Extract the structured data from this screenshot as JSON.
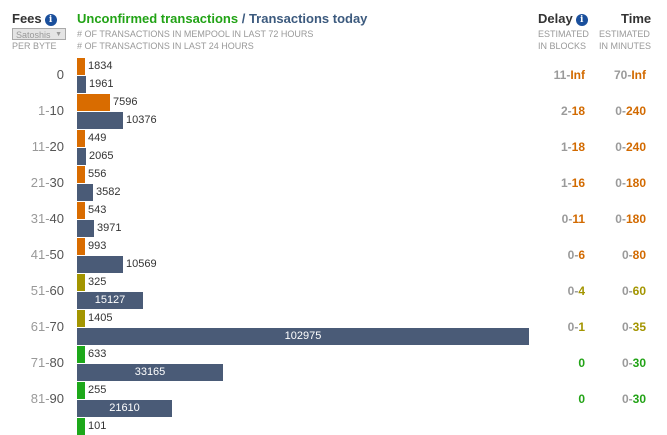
{
  "header": {
    "fees_label": "Fees",
    "unit_select": "Satoshis",
    "per_byte": "PER BYTE",
    "title_unconfirmed": "Unconfirmed transactions",
    "title_sep": " / ",
    "title_today": "Transactions today",
    "sub_mempool": "# OF TRANSACTIONS IN MEMPOOL IN LAST 72 HOURS",
    "sub_last24": "# OF TRANSACTIONS IN LAST 24 HOURS",
    "delay_label": "Delay",
    "delay_sub1": "ESTIMATED",
    "delay_sub2": "IN BLOCKS",
    "time_label": "Time",
    "time_sub1": "ESTIMATED",
    "time_sub2": "IN MINUTES"
  },
  "colors": {
    "orange": "#d96c00",
    "olive": "#a39500",
    "green": "#1da81a",
    "slate": "#4a5b77",
    "info": "#1a4f9c"
  },
  "scale_max": 102975,
  "rows": [
    {
      "lo": "",
      "hi": "0",
      "mempool": 1834,
      "today": 1961,
      "mcolor": "orange",
      "delay_lo": "11",
      "delay_hi": "Inf",
      "delay_color": "org",
      "time_lo": "70",
      "time_hi": "Inf",
      "time_color": "org"
    },
    {
      "lo": "1",
      "hi": "10",
      "mempool": 7596,
      "today": 10376,
      "mcolor": "orange",
      "delay_lo": "2",
      "delay_hi": "18",
      "delay_color": "org",
      "time_lo": "0",
      "time_hi": "240",
      "time_color": "org"
    },
    {
      "lo": "11",
      "hi": "20",
      "mempool": 449,
      "today": 2065,
      "mcolor": "orange",
      "delay_lo": "1",
      "delay_hi": "18",
      "delay_color": "org",
      "time_lo": "0",
      "time_hi": "240",
      "time_color": "org"
    },
    {
      "lo": "21",
      "hi": "30",
      "mempool": 556,
      "today": 3582,
      "mcolor": "orange",
      "delay_lo": "1",
      "delay_hi": "16",
      "delay_color": "org",
      "time_lo": "0",
      "time_hi": "180",
      "time_color": "org"
    },
    {
      "lo": "31",
      "hi": "40",
      "mempool": 543,
      "today": 3971,
      "mcolor": "orange",
      "delay_lo": "0",
      "delay_hi": "11",
      "delay_color": "org",
      "time_lo": "0",
      "time_hi": "180",
      "time_color": "org"
    },
    {
      "lo": "41",
      "hi": "50",
      "mempool": 993,
      "today": 10569,
      "mcolor": "orange",
      "delay_lo": "0",
      "delay_hi": "6",
      "delay_color": "org",
      "time_lo": "0",
      "time_hi": "80",
      "time_color": "org"
    },
    {
      "lo": "51",
      "hi": "60",
      "mempool": 325,
      "today": 15127,
      "mcolor": "olive",
      "delay_lo": "0",
      "delay_hi": "4",
      "delay_color": "olv",
      "time_lo": "0",
      "time_hi": "60",
      "time_color": "olv"
    },
    {
      "lo": "61",
      "hi": "70",
      "mempool": 1405,
      "today": 102975,
      "mcolor": "olive",
      "delay_lo": "0",
      "delay_hi": "1",
      "delay_color": "olv",
      "time_lo": "0",
      "time_hi": "35",
      "time_color": "olv"
    },
    {
      "lo": "71",
      "hi": "80",
      "mempool": 633,
      "today": 33165,
      "mcolor": "green",
      "delay_lo": "",
      "delay_hi": "0",
      "delay_color": "grn",
      "time_lo": "0",
      "time_hi": "30",
      "time_color": "grn"
    },
    {
      "lo": "81",
      "hi": "90",
      "mempool": 255,
      "today": 21610,
      "mcolor": "green",
      "delay_lo": "",
      "delay_hi": "0",
      "delay_color": "grn",
      "time_lo": "0",
      "time_hi": "30",
      "time_color": "grn"
    },
    {
      "lo": "",
      "hi": "",
      "mempool": 101,
      "today": null,
      "mcolor": "green",
      "delay_lo": "",
      "delay_hi": "",
      "delay_color": "grn",
      "time_lo": "",
      "time_hi": "",
      "time_color": "grn"
    }
  ]
}
